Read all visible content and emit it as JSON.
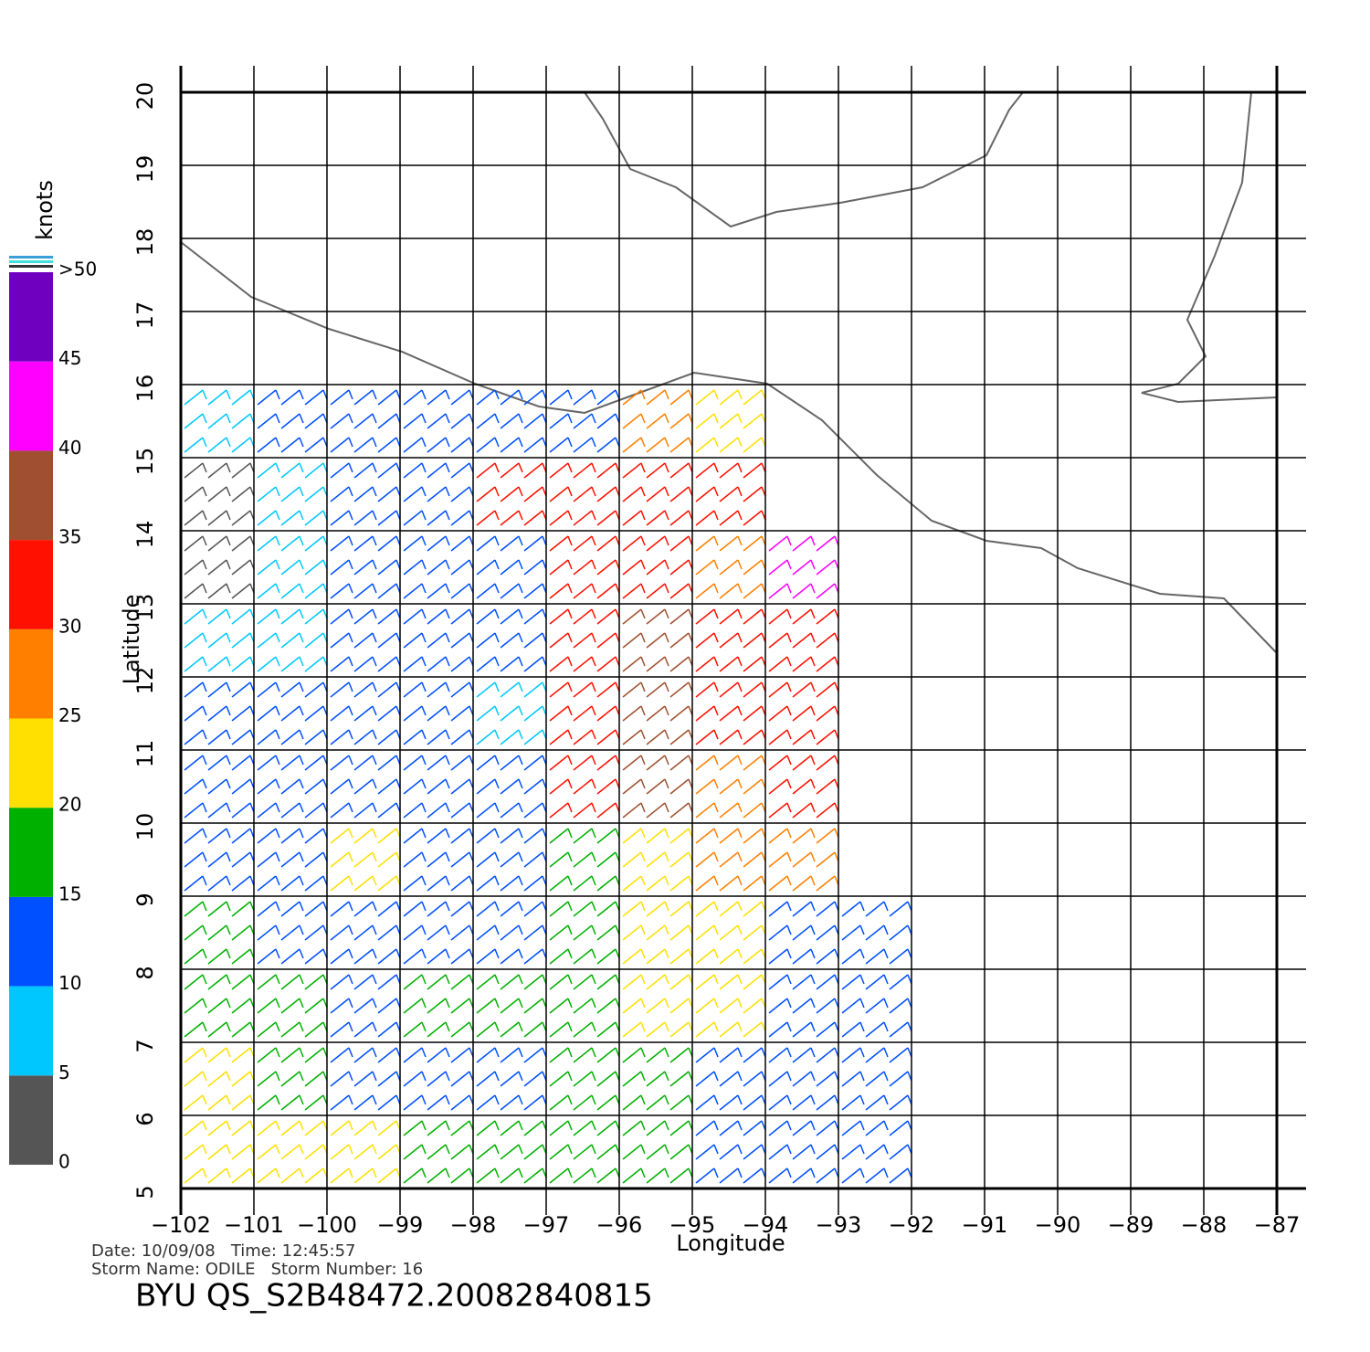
{
  "map": {
    "xlim": [
      -102,
      -87
    ],
    "ylim": [
      5,
      20
    ],
    "xticks": [
      {
        "value": -102,
        "label": "−102"
      },
      {
        "value": -101,
        "label": "−101"
      },
      {
        "value": -100,
        "label": "−100"
      },
      {
        "value": -99,
        "label": "−99"
      },
      {
        "value": -98,
        "label": "−98"
      },
      {
        "value": -97,
        "label": "−97"
      },
      {
        "value": -96,
        "label": "−96"
      },
      {
        "value": -95,
        "label": "−95"
      },
      {
        "value": -94,
        "label": "−94"
      },
      {
        "value": -93,
        "label": "−93"
      },
      {
        "value": -92,
        "label": "−92"
      },
      {
        "value": -91,
        "label": "−91"
      },
      {
        "value": -90,
        "label": "−90"
      },
      {
        "value": -89,
        "label": "−89"
      },
      {
        "value": -88,
        "label": "−88"
      },
      {
        "value": -87,
        "label": "−87"
      }
    ],
    "yticks": [
      5,
      6,
      7,
      8,
      9,
      10,
      11,
      12,
      13,
      14,
      15,
      16,
      17,
      18,
      19,
      20
    ],
    "x_label": "Longitude",
    "y_label": "Latitude",
    "grid": true,
    "wind": {
      "lons": [
        -101.5,
        -100.5,
        -99.5,
        -98.5,
        -97.5,
        -96.5,
        -95.5,
        -94.5,
        -93.5,
        -92.5
      ],
      "rows": [
        {
          "lat": 15.5,
          "speed": [
            8,
            10,
            12,
            13,
            14,
            14,
            25,
            20,
            null,
            null
          ]
        },
        {
          "lat": 14.5,
          "speed": [
            3,
            8,
            10,
            12,
            30,
            33,
            33,
            30,
            null,
            null
          ]
        },
        {
          "lat": 13.5,
          "speed": [
            3,
            7,
            10,
            12,
            14,
            33,
            33,
            25,
            40,
            null
          ]
        },
        {
          "lat": 12.5,
          "speed": [
            7,
            8,
            10,
            12,
            14,
            33,
            35,
            30,
            33,
            null
          ]
        },
        {
          "lat": 11.5,
          "speed": [
            12,
            12,
            12,
            10,
            8,
            33,
            38,
            30,
            30,
            null
          ]
        },
        {
          "lat": 10.5,
          "speed": [
            12,
            12,
            13,
            13,
            14,
            33,
            38,
            28,
            30,
            null
          ]
        },
        {
          "lat": 9.5,
          "speed": [
            12,
            14,
            20,
            13,
            12,
            15,
            22,
            25,
            28,
            null
          ]
        },
        {
          "lat": 8.5,
          "speed": [
            16,
            14,
            13,
            14,
            13,
            17,
            20,
            22,
            14,
            13
          ]
        },
        {
          "lat": 7.5,
          "speed": [
            18,
            16,
            13,
            16,
            17,
            17,
            20,
            20,
            14,
            12
          ]
        },
        {
          "lat": 6.5,
          "speed": [
            20,
            18,
            14,
            13,
            14,
            17,
            17,
            14,
            13,
            12
          ]
        },
        {
          "lat": 5.5,
          "speed": [
            22,
            22,
            20,
            17,
            18,
            17,
            17,
            14,
            13,
            12
          ]
        }
      ]
    }
  },
  "colorbar": {
    "title": "knots",
    "ticks": [
      0,
      5,
      10,
      15,
      20,
      25,
      30,
      35,
      40,
      45,
      {
        "value": 50,
        "label": ">50"
      }
    ],
    "colors": [
      "#555555",
      "#00c8ff",
      "#0050ff",
      "#00b000",
      "#ffe000",
      "#ff8000",
      "#ff1000",
      "#a05030",
      "#ff00ff",
      "#7000c0"
    ]
  },
  "footer": {
    "date_line": "Date: 10/09/08   Time: 12:45:57",
    "storm_line": "Storm Name: ODILE   Storm Number: 16",
    "product": "BYU QS_S2B48472.20082840815"
  }
}
